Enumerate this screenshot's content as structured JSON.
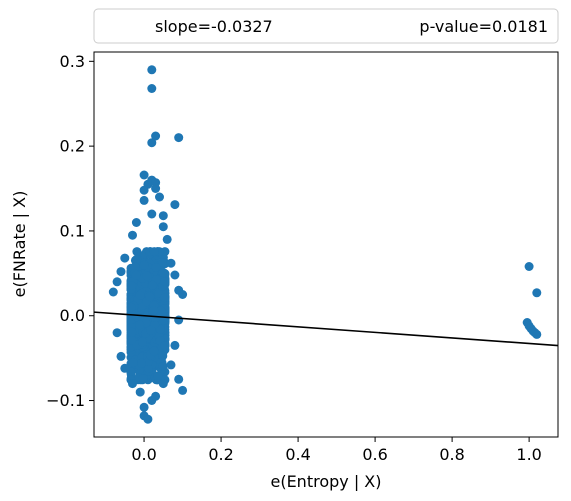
{
  "chart_data": {
    "type": "scatter",
    "legend": {
      "location": "top",
      "entries": [
        "slope=-0.0327",
        "p-value=0.0181"
      ]
    },
    "xlabel": "e(Entropy | X)",
    "ylabel": "e(FNRate | X)",
    "xlim": [
      -0.13,
      1.075
    ],
    "ylim": [
      -0.143,
      0.311
    ],
    "xticks": [
      0.0,
      0.2,
      0.4,
      0.6,
      0.8,
      1.0
    ],
    "xtick_labels": [
      "0.0",
      "0.2",
      "0.4",
      "0.6",
      "0.8",
      "1.0"
    ],
    "yticks": [
      -0.1,
      0.0,
      0.1,
      0.2,
      0.3
    ],
    "ytick_labels": [
      "−0.1",
      "0.0",
      "0.1",
      "0.2",
      "0.3"
    ],
    "grid": false,
    "marker_color": "#1f77b4",
    "line_color": "#000000",
    "fit_line": {
      "slope": -0.0327,
      "intercept": 0.0
    },
    "series": [
      {
        "points": [
          [
            0.02,
            0.29
          ],
          [
            0.02,
            0.268
          ],
          [
            0.03,
            0.212
          ],
          [
            0.02,
            0.204
          ],
          [
            0.09,
            0.21
          ],
          [
            0.0,
            0.166
          ],
          [
            0.01,
            0.155
          ],
          [
            0.02,
            0.16
          ],
          [
            0.03,
            0.157
          ],
          [
            0.0,
            0.148
          ],
          [
            0.03,
            0.15
          ],
          [
            0.08,
            0.131
          ],
          [
            0.0,
            0.136
          ],
          [
            0.04,
            0.14
          ],
          [
            0.05,
            0.118
          ],
          [
            -0.02,
            0.11
          ],
          [
            0.02,
            0.12
          ],
          [
            0.05,
            0.105
          ],
          [
            -0.03,
            0.095
          ],
          [
            0.06,
            0.09
          ],
          [
            -0.05,
            0.068
          ],
          [
            0.07,
            0.062
          ],
          [
            -0.06,
            0.052
          ],
          [
            0.08,
            0.048
          ],
          [
            -0.07,
            0.04
          ],
          [
            0.09,
            0.03
          ],
          [
            -0.08,
            0.028
          ],
          [
            0.1,
            0.025
          ],
          [
            0.09,
            -0.005
          ],
          [
            -0.07,
            -0.02
          ],
          [
            0.08,
            -0.035
          ],
          [
            -0.06,
            -0.048
          ],
          [
            0.07,
            -0.058
          ],
          [
            -0.05,
            -0.062
          ],
          [
            0.09,
            -0.075
          ],
          [
            0.1,
            -0.088
          ],
          [
            -0.03,
            -0.08
          ],
          [
            0.05,
            -0.08
          ],
          [
            0.02,
            -0.1
          ],
          [
            0.0,
            -0.108
          ],
          [
            0.0,
            -0.118
          ],
          [
            0.01,
            -0.122
          ],
          [
            0.03,
            -0.095
          ],
          [
            -0.01,
            -0.09
          ],
          [
            1.0,
            0.058
          ],
          [
            1.02,
            0.027
          ],
          [
            0.995,
            -0.008
          ],
          [
            1.0,
            -0.012
          ],
          [
            1.005,
            -0.015
          ],
          [
            1.01,
            -0.018
          ],
          [
            1.015,
            -0.02
          ],
          [
            1.02,
            -0.022
          ]
        ],
        "cluster": {
          "x_center": 0.01,
          "x_spread": 0.05,
          "y_center": 0.0,
          "y_spread": 0.042,
          "count": 1500
        }
      }
    ]
  }
}
